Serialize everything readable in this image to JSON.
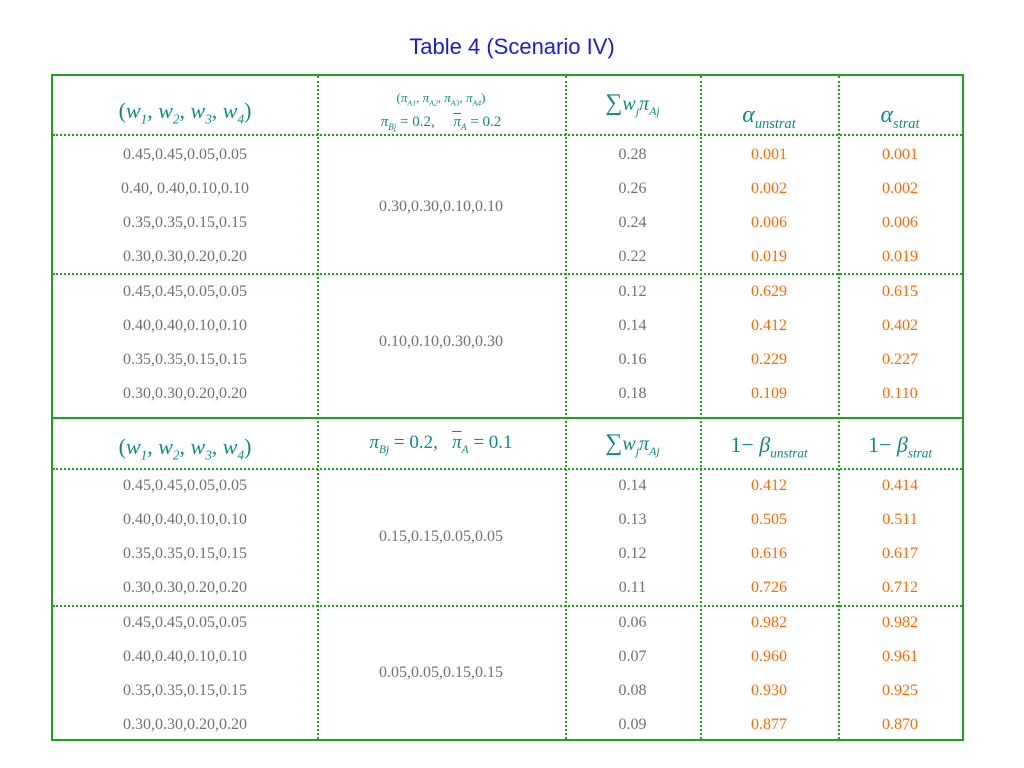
{
  "title": "Table 4 (Scenario IV)",
  "colors": {
    "title": "#1a1adc",
    "border": "#22a022",
    "header": "#0e8a8a",
    "value": "#ff6a00",
    "text": "#707070"
  },
  "top": {
    "header": {
      "weights": "(w1, w2, w3, w4)",
      "pi_a": "(πA1, πA2, πA3, πA4)",
      "pi_b": "πBj = 0.2,",
      "pi_bar": "π̄A = 0.2",
      "sum": "Σ wj πAj",
      "col4": "αunstrat",
      "col5": "αstrat"
    },
    "groups": [
      {
        "pi": "0.30,0.30,0.10,0.10",
        "rows": [
          {
            "w": "0.45,0.45,0.05,0.05",
            "sum": "0.28",
            "a": "0.001",
            "b": "0.001"
          },
          {
            "w": "0.40, 0.40,0.10,0.10",
            "sum": "0.26",
            "a": "0.002",
            "b": "0.002"
          },
          {
            "w": "0.35,0.35,0.15,0.15",
            "sum": "0.24",
            "a": "0.006",
            "b": "0.006"
          },
          {
            "w": "0.30,0.30,0.20,0.20",
            "sum": "0.22",
            "a": "0.019",
            "b": "0.019"
          }
        ]
      },
      {
        "pi": "0.10,0.10,0.30,0.30",
        "rows": [
          {
            "w": "0.45,0.45,0.05,0.05",
            "sum": "0.12",
            "a": "0.629",
            "b": "0.615"
          },
          {
            "w": "0.40,0.40,0.10,0.10",
            "sum": "0.14",
            "a": "0.412",
            "b": "0.402"
          },
          {
            "w": "0.35,0.35,0.15,0.15",
            "sum": "0.16",
            "a": "0.229",
            "b": "0.227"
          },
          {
            "w": "0.30,0.30,0.20,0.20",
            "sum": "0.18",
            "a": "0.109",
            "b": "0.110"
          }
        ]
      }
    ]
  },
  "bottom": {
    "header": {
      "weights": "(w1, w2, w3, w4)",
      "pi": "πBj = 0.2,  π̄A = 0.1",
      "sum": "Σ wj πAj",
      "col4": "1− βunstrat",
      "col5": "1− βstrat"
    },
    "groups": [
      {
        "pi": "0.15,0.15,0.05,0.05",
        "rows": [
          {
            "w": "0.45,0.45,0.05,0.05",
            "sum": "0.14",
            "a": "0.412",
            "b": "0.414"
          },
          {
            "w": "0.40,0.40,0.10,0.10",
            "sum": "0.13",
            "a": "0.505",
            "b": "0.511"
          },
          {
            "w": "0.35,0.35,0.15,0.15",
            "sum": "0.12",
            "a": "0.616",
            "b": "0.617"
          },
          {
            "w": "0.30,0.30,0.20,0.20",
            "sum": "0.11",
            "a": "0.726",
            "b": "0.712"
          }
        ]
      },
      {
        "pi": "0.05,0.05,0.15,0.15",
        "rows": [
          {
            "w": "0.45,0.45,0.05,0.05",
            "sum": "0.06",
            "a": "0.982",
            "b": "0.982"
          },
          {
            "w": "0.40,0.40,0.10,0.10",
            "sum": "0.07",
            "a": "0.960",
            "b": "0.961"
          },
          {
            "w": "0.35,0.35,0.15,0.15",
            "sum": "0.08",
            "a": "0.930",
            "b": "0.925"
          },
          {
            "w": "0.30,0.30,0.20,0.20",
            "sum": "0.09",
            "a": "0.877",
            "b": "0.870"
          }
        ]
      }
    ]
  }
}
